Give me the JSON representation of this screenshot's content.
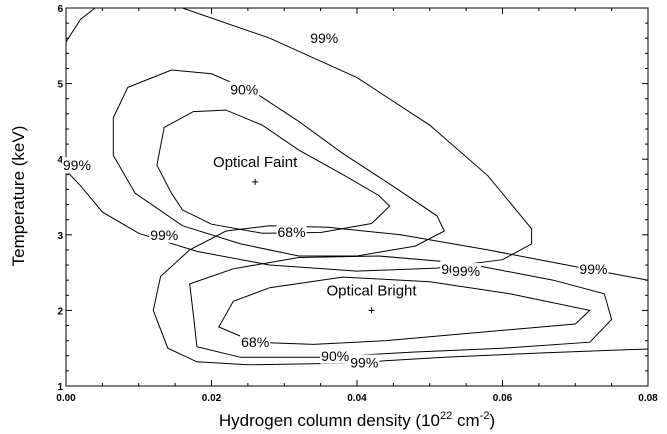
{
  "chart_data": {
    "type": "contour",
    "xlabel": "Hydrogen column density (10",
    "xlabel_exp": "22",
    "xlabel_unit": " cm",
    "xlabel_unit_exp": "-2",
    "xlabel_close": ")",
    "ylabel": "Temperature (keV)",
    "xlim": [
      0.0,
      0.08
    ],
    "ylim": [
      1,
      6
    ],
    "x_ticks": [
      {
        "value": 0.0,
        "label": "0.00"
      },
      {
        "value": 0.02,
        "label": "0.02"
      },
      {
        "value": 0.04,
        "label": "0.04"
      },
      {
        "value": 0.06,
        "label": "0.06"
      },
      {
        "value": 0.08,
        "label": "0.08"
      }
    ],
    "y_ticks": [
      {
        "value": 1,
        "label": "1"
      },
      {
        "value": 2,
        "label": "2"
      },
      {
        "value": 3,
        "label": "3"
      },
      {
        "value": 4,
        "label": "4"
      },
      {
        "value": 5,
        "label": "5"
      },
      {
        "value": 6,
        "label": "6"
      }
    ],
    "best_fits": [
      {
        "label": "Optical Faint",
        "x": 0.026,
        "y": 3.7
      },
      {
        "label": "Optical Bright",
        "x": 0.042,
        "y": 2.0
      }
    ],
    "contours": [
      {
        "group": "faint",
        "level": "68%",
        "closed": true,
        "points": [
          [
            0.0135,
            4.42
          ],
          [
            0.0175,
            4.63
          ],
          [
            0.022,
            4.65
          ],
          [
            0.027,
            4.45
          ],
          [
            0.032,
            4.12
          ],
          [
            0.038,
            3.8
          ],
          [
            0.043,
            3.52
          ],
          [
            0.0445,
            3.38
          ],
          [
            0.042,
            3.15
          ],
          [
            0.035,
            3.03
          ],
          [
            0.027,
            3.02
          ],
          [
            0.02,
            3.14
          ],
          [
            0.016,
            3.33
          ],
          [
            0.0145,
            3.55
          ],
          [
            0.0125,
            3.92
          ]
        ],
        "labels": [
          {
            "text": "68%",
            "x": 0.031,
            "y": 3.04
          }
        ]
      },
      {
        "group": "faint",
        "level": "90%",
        "closed": true,
        "points": [
          [
            0.0085,
            4.95
          ],
          [
            0.0145,
            5.18
          ],
          [
            0.02,
            5.13
          ],
          [
            0.026,
            4.88
          ],
          [
            0.032,
            4.5
          ],
          [
            0.038,
            4.08
          ],
          [
            0.045,
            3.64
          ],
          [
            0.051,
            3.25
          ],
          [
            0.052,
            3.05
          ],
          [
            0.048,
            2.85
          ],
          [
            0.04,
            2.72
          ],
          [
            0.032,
            2.72
          ],
          [
            0.024,
            2.88
          ],
          [
            0.016,
            3.12
          ],
          [
            0.0095,
            3.55
          ],
          [
            0.0065,
            4.05
          ],
          [
            0.0065,
            4.55
          ]
        ],
        "labels": [
          {
            "text": "90%",
            "x": 0.0245,
            "y": 4.92
          }
        ]
      },
      {
        "group": "faint",
        "level": "99%",
        "closed": false,
        "points": [
          [
            0.0,
            5.55
          ],
          [
            0.002,
            5.85
          ],
          [
            0.004,
            6.0
          ]
        ],
        "labels": []
      },
      {
        "group": "faint",
        "level": "99%",
        "closed": false,
        "points": [
          [
            0.016,
            6.0
          ],
          [
            0.028,
            5.6
          ],
          [
            0.04,
            5.08
          ],
          [
            0.05,
            4.45
          ],
          [
            0.058,
            3.78
          ],
          [
            0.064,
            3.08
          ],
          [
            0.064,
            2.88
          ],
          [
            0.06,
            2.67
          ],
          [
            0.051,
            2.56
          ],
          [
            0.04,
            2.52
          ],
          [
            0.028,
            2.6
          ],
          [
            0.018,
            2.78
          ],
          [
            0.01,
            3.02
          ],
          [
            0.005,
            3.3
          ],
          [
            0.002,
            3.65
          ],
          [
            0.0,
            3.85
          ]
        ],
        "labels": [
          {
            "text": "99%",
            "x": 0.0355,
            "y": 5.6
          },
          {
            "text": "99%",
            "x": 0.0015,
            "y": 3.92
          }
        ]
      },
      {
        "group": "bright",
        "level": "68%",
        "closed": true,
        "points": [
          [
            0.023,
            2.12
          ],
          [
            0.028,
            2.3
          ],
          [
            0.038,
            2.44
          ],
          [
            0.05,
            2.38
          ],
          [
            0.061,
            2.22
          ],
          [
            0.072,
            2.0
          ],
          [
            0.07,
            1.82
          ],
          [
            0.058,
            1.72
          ],
          [
            0.044,
            1.6
          ],
          [
            0.034,
            1.55
          ],
          [
            0.026,
            1.58
          ],
          [
            0.021,
            1.78
          ]
        ],
        "labels": [
          {
            "text": "68%",
            "x": 0.026,
            "y": 1.58
          }
        ]
      },
      {
        "group": "bright",
        "level": "90%",
        "closed": true,
        "points": [
          [
            0.017,
            2.35
          ],
          [
            0.023,
            2.55
          ],
          [
            0.032,
            2.7
          ],
          [
            0.043,
            2.72
          ],
          [
            0.055,
            2.62
          ],
          [
            0.067,
            2.4
          ],
          [
            0.074,
            2.22
          ],
          [
            0.075,
            1.88
          ],
          [
            0.072,
            1.58
          ],
          [
            0.06,
            1.5
          ],
          [
            0.048,
            1.45
          ],
          [
            0.035,
            1.38
          ],
          [
            0.024,
            1.38
          ],
          [
            0.018,
            1.52
          ],
          [
            0.0175,
            1.95
          ]
        ],
        "labels": [
          {
            "text": "90%",
            "x": 0.0535,
            "y": 2.55
          },
          {
            "text": "90%",
            "x": 0.037,
            "y": 1.4
          }
        ]
      },
      {
        "group": "bright",
        "level": "99%",
        "closed": false,
        "points": [
          [
            0.08,
            1.49
          ],
          [
            0.066,
            1.44
          ],
          [
            0.052,
            1.38
          ],
          [
            0.038,
            1.3
          ],
          [
            0.025,
            1.28
          ],
          [
            0.018,
            1.32
          ],
          [
            0.014,
            1.5
          ],
          [
            0.012,
            2.0
          ],
          [
            0.013,
            2.45
          ],
          [
            0.017,
            2.8
          ],
          [
            0.022,
            3.05
          ],
          [
            0.028,
            3.12
          ],
          [
            0.036,
            3.1
          ],
          [
            0.046,
            3.0
          ],
          [
            0.058,
            2.8
          ],
          [
            0.07,
            2.58
          ],
          [
            0.08,
            2.4
          ]
        ],
        "labels": [
          {
            "text": "99%",
            "x": 0.055,
            "y": 2.52
          },
          {
            "text": "99%",
            "x": 0.041,
            "y": 1.31
          },
          {
            "text": "99%",
            "x": 0.0725,
            "y": 2.55
          },
          {
            "text": "99%",
            "x": 0.0135,
            "y": 3.0
          }
        ]
      }
    ]
  }
}
